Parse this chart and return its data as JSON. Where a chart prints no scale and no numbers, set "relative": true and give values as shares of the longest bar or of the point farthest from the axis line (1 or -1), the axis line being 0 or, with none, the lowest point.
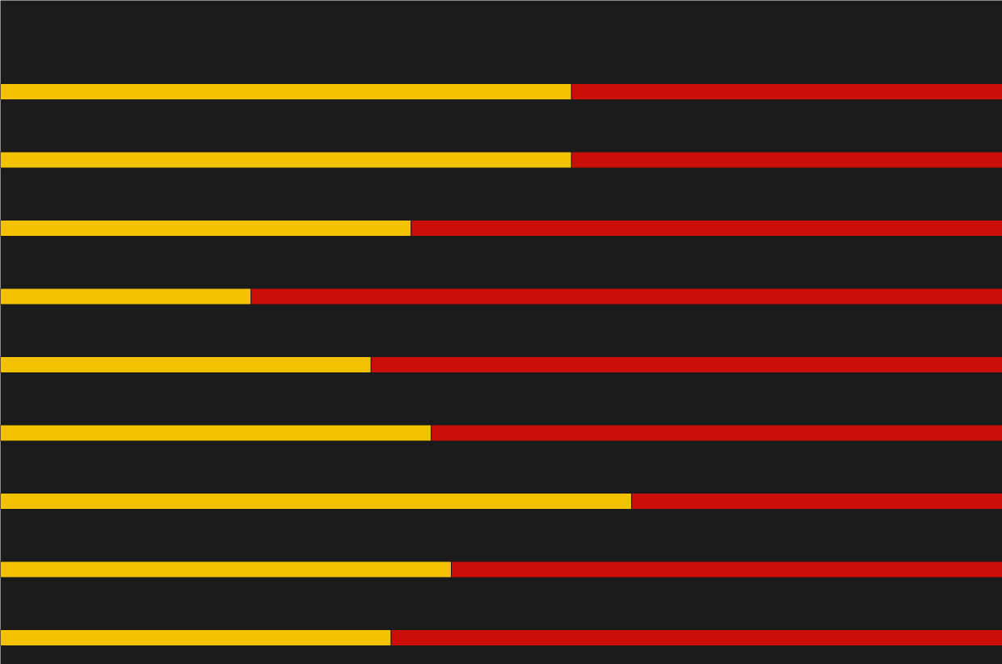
{
  "chart_data": {
    "type": "bar",
    "orientation": "horizontal",
    "stacked": true,
    "relative": true,
    "categories": [
      null,
      null,
      null,
      null,
      null,
      null,
      null,
      null,
      null
    ],
    "series": [
      {
        "color": "#f2c200",
        "values": [
          0.57,
          0.57,
          0.41,
          0.25,
          0.37,
          0.43,
          0.63,
          0.45,
          0.39
        ]
      },
      {
        "color": "#cc0e08",
        "values": [
          0.43,
          0.43,
          0.59,
          0.75,
          0.63,
          0.57,
          0.37,
          0.55,
          0.61
        ]
      }
    ]
  }
}
